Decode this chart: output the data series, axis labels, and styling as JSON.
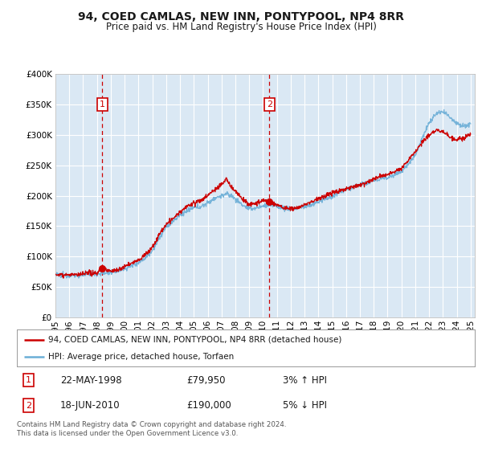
{
  "title": "94, COED CAMLAS, NEW INN, PONTYPOOL, NP4 8RR",
  "subtitle": "Price paid vs. HM Land Registry's House Price Index (HPI)",
  "ylim": [
    0,
    400000
  ],
  "xlim_start": 1995.0,
  "xlim_end": 2025.3,
  "sale1": {
    "date_num": 1998.38,
    "price": 79950,
    "label": "1",
    "pct": "3%",
    "dir": "↑",
    "date_str": "22-MAY-1998"
  },
  "sale2": {
    "date_num": 2010.46,
    "price": 190000,
    "label": "2",
    "pct": "5%",
    "dir": "↓",
    "date_str": "18-JUN-2010"
  },
  "hpi_line_color": "#6baed6",
  "sale_line_color": "#cc0000",
  "vline_color": "#cc0000",
  "annotation_box_color": "#cc0000",
  "bg_color": "#dae8f4",
  "grid_color": "#ffffff",
  "legend_label_red": "94, COED CAMLAS, NEW INN, PONTYPOOL, NP4 8RR (detached house)",
  "legend_label_blue": "HPI: Average price, detached house, Torfaen",
  "footer": "Contains HM Land Registry data © Crown copyright and database right 2024.\nThis data is licensed under the Open Government Licence v3.0.",
  "x_ticks": [
    1995,
    1996,
    1997,
    1998,
    1999,
    2000,
    2001,
    2002,
    2003,
    2004,
    2005,
    2006,
    2007,
    2008,
    2009,
    2010,
    2011,
    2012,
    2013,
    2014,
    2015,
    2016,
    2017,
    2018,
    2019,
    2020,
    2021,
    2022,
    2023,
    2024,
    2025
  ],
  "hpi_anchors": [
    [
      1995.0,
      70000
    ],
    [
      1995.5,
      69000
    ],
    [
      1996.0,
      69500
    ],
    [
      1996.5,
      68500
    ],
    [
      1997.0,
      70000
    ],
    [
      1997.5,
      71000
    ],
    [
      1998.0,
      71500
    ],
    [
      1998.5,
      72000
    ],
    [
      1999.0,
      74000
    ],
    [
      1999.5,
      76000
    ],
    [
      2000.0,
      80000
    ],
    [
      2000.5,
      85000
    ],
    [
      2001.0,
      90000
    ],
    [
      2001.5,
      98000
    ],
    [
      2002.0,
      110000
    ],
    [
      2002.5,
      130000
    ],
    [
      2003.0,
      148000
    ],
    [
      2003.5,
      158000
    ],
    [
      2004.0,
      168000
    ],
    [
      2004.5,
      175000
    ],
    [
      2005.0,
      180000
    ],
    [
      2005.5,
      182000
    ],
    [
      2006.0,
      188000
    ],
    [
      2006.5,
      196000
    ],
    [
      2007.0,
      200000
    ],
    [
      2007.3,
      203000
    ],
    [
      2007.7,
      200000
    ],
    [
      2008.0,
      195000
    ],
    [
      2008.5,
      185000
    ],
    [
      2009.0,
      178000
    ],
    [
      2009.5,
      180000
    ],
    [
      2010.0,
      183000
    ],
    [
      2010.5,
      185000
    ],
    [
      2011.0,
      183000
    ],
    [
      2011.5,
      180000
    ],
    [
      2012.0,
      178000
    ],
    [
      2012.5,
      180000
    ],
    [
      2013.0,
      182000
    ],
    [
      2013.5,
      185000
    ],
    [
      2014.0,
      190000
    ],
    [
      2014.5,
      195000
    ],
    [
      2015.0,
      198000
    ],
    [
      2015.5,
      205000
    ],
    [
      2016.0,
      210000
    ],
    [
      2016.5,
      215000
    ],
    [
      2017.0,
      218000
    ],
    [
      2017.5,
      220000
    ],
    [
      2018.0,
      225000
    ],
    [
      2018.5,
      228000
    ],
    [
      2019.0,
      230000
    ],
    [
      2019.5,
      235000
    ],
    [
      2020.0,
      240000
    ],
    [
      2020.5,
      252000
    ],
    [
      2021.0,
      268000
    ],
    [
      2021.5,
      295000
    ],
    [
      2022.0,
      320000
    ],
    [
      2022.5,
      335000
    ],
    [
      2023.0,
      338000
    ],
    [
      2023.5,
      330000
    ],
    [
      2024.0,
      320000
    ],
    [
      2024.5,
      315000
    ],
    [
      2025.0,
      318000
    ]
  ],
  "red_anchors": [
    [
      1995.0,
      70000
    ],
    [
      1995.5,
      70500
    ],
    [
      1996.0,
      70000
    ],
    [
      1996.5,
      69500
    ],
    [
      1997.0,
      71000
    ],
    [
      1997.5,
      72500
    ],
    [
      1998.0,
      73000
    ],
    [
      1998.38,
      79950
    ],
    [
      1999.0,
      76000
    ],
    [
      1999.5,
      78000
    ],
    [
      2000.0,
      83000
    ],
    [
      2000.5,
      89000
    ],
    [
      2001.0,
      94000
    ],
    [
      2001.5,
      103000
    ],
    [
      2002.0,
      115000
    ],
    [
      2002.5,
      136000
    ],
    [
      2003.0,
      153000
    ],
    [
      2003.5,
      162000
    ],
    [
      2004.0,
      173000
    ],
    [
      2004.5,
      182000
    ],
    [
      2005.0,
      188000
    ],
    [
      2005.5,
      192000
    ],
    [
      2006.0,
      200000
    ],
    [
      2006.5,
      210000
    ],
    [
      2007.0,
      218000
    ],
    [
      2007.3,
      228000
    ],
    [
      2007.7,
      215000
    ],
    [
      2008.0,
      208000
    ],
    [
      2008.5,
      195000
    ],
    [
      2009.0,
      185000
    ],
    [
      2009.5,
      188000
    ],
    [
      2010.0,
      192000
    ],
    [
      2010.46,
      190000
    ],
    [
      2011.0,
      185000
    ],
    [
      2011.5,
      180000
    ],
    [
      2012.0,
      178000
    ],
    [
      2012.5,
      180000
    ],
    [
      2013.0,
      185000
    ],
    [
      2013.5,
      190000
    ],
    [
      2014.0,
      195000
    ],
    [
      2014.5,
      200000
    ],
    [
      2015.0,
      205000
    ],
    [
      2015.5,
      208000
    ],
    [
      2016.0,
      212000
    ],
    [
      2016.5,
      215000
    ],
    [
      2017.0,
      218000
    ],
    [
      2017.5,
      222000
    ],
    [
      2018.0,
      228000
    ],
    [
      2018.5,
      232000
    ],
    [
      2019.0,
      235000
    ],
    [
      2019.5,
      240000
    ],
    [
      2020.0,
      245000
    ],
    [
      2020.5,
      258000
    ],
    [
      2021.0,
      272000
    ],
    [
      2021.5,
      288000
    ],
    [
      2022.0,
      300000
    ],
    [
      2022.5,
      308000
    ],
    [
      2023.0,
      305000
    ],
    [
      2023.5,
      298000
    ],
    [
      2024.0,
      292000
    ],
    [
      2024.5,
      295000
    ],
    [
      2025.0,
      300000
    ]
  ]
}
